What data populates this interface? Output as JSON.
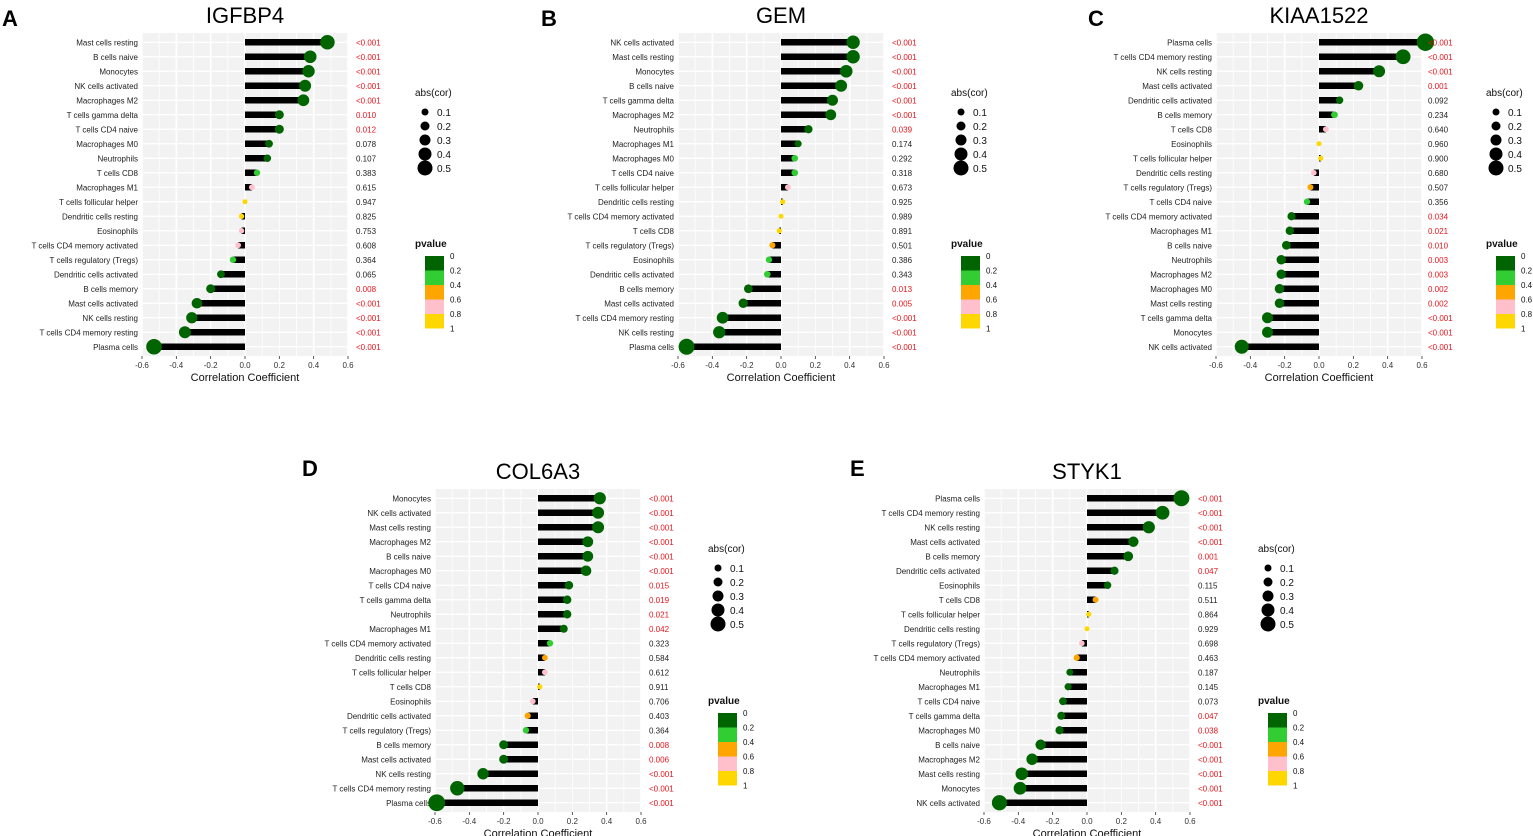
{
  "colors": {
    "panel_bg": "#f2f2f2",
    "stem": "#000000",
    "sig_text": "#e8141b",
    "normal_text": "#222222",
    "p_scale": [
      "#006400",
      "#32cd32",
      "#ffa500",
      "#ffc0cb",
      "#ffd700"
    ]
  },
  "legend": {
    "size_title": "abs(cor)",
    "size_labels": [
      "0.1",
      "0.2",
      "0.3",
      "0.4",
      "0.5"
    ],
    "color_title": "pvalue",
    "color_labels": [
      "0",
      "0.2",
      "0.4",
      "0.6",
      "0.8",
      "1"
    ]
  },
  "chart_data": [
    {
      "type": "lollipop",
      "panel": "A",
      "title": "IGFBP4",
      "xlabel": "Correlation Coefficient",
      "xlim": [
        -0.6,
        0.6
      ],
      "xticks": [
        "-0.6",
        "-0.4",
        "-0.2",
        "0.0",
        "0.2",
        "0.4",
        "0.6"
      ],
      "rows": [
        {
          "cell": "Mast cells resting",
          "cor": 0.48,
          "p": 0.0,
          "p_text": "<0.001"
        },
        {
          "cell": "B cells naive",
          "cor": 0.38,
          "p": 0.0,
          "p_text": "<0.001"
        },
        {
          "cell": "Monocytes",
          "cor": 0.37,
          "p": 0.0,
          "p_text": "<0.001"
        },
        {
          "cell": "NK cells activated",
          "cor": 0.35,
          "p": 0.0,
          "p_text": "<0.001"
        },
        {
          "cell": "Macrophages M2",
          "cor": 0.34,
          "p": 0.0,
          "p_text": "<0.001"
        },
        {
          "cell": "T cells gamma delta",
          "cor": 0.2,
          "p": 0.01,
          "p_text": "0.010"
        },
        {
          "cell": "T cells CD4 naive",
          "cor": 0.2,
          "p": 0.012,
          "p_text": "0.012"
        },
        {
          "cell": "Macrophages M0",
          "cor": 0.14,
          "p": 0.078,
          "p_text": "0.078"
        },
        {
          "cell": "Neutrophils",
          "cor": 0.13,
          "p": 0.107,
          "p_text": "0.107"
        },
        {
          "cell": "T cells CD8",
          "cor": 0.07,
          "p": 0.383,
          "p_text": "0.383"
        },
        {
          "cell": "Macrophages M1",
          "cor": 0.04,
          "p": 0.615,
          "p_text": "0.615"
        },
        {
          "cell": "T cells follicular helper",
          "cor": 0.0,
          "p": 0.947,
          "p_text": "0.947"
        },
        {
          "cell": "Dendritic cells resting",
          "cor": -0.02,
          "p": 0.825,
          "p_text": "0.825"
        },
        {
          "cell": "Eosinophils",
          "cor": -0.02,
          "p": 0.753,
          "p_text": "0.753"
        },
        {
          "cell": "T cells CD4 memory activated",
          "cor": -0.04,
          "p": 0.608,
          "p_text": "0.608"
        },
        {
          "cell": "T cells regulatory (Tregs)",
          "cor": -0.07,
          "p": 0.364,
          "p_text": "0.364"
        },
        {
          "cell": "Dendritic cells activated",
          "cor": -0.14,
          "p": 0.065,
          "p_text": "0.065"
        },
        {
          "cell": "B cells memory",
          "cor": -0.2,
          "p": 0.008,
          "p_text": "0.008"
        },
        {
          "cell": "Mast cells activated",
          "cor": -0.28,
          "p": 0.0,
          "p_text": "<0.001"
        },
        {
          "cell": "NK cells resting",
          "cor": -0.31,
          "p": 0.0,
          "p_text": "<0.001"
        },
        {
          "cell": "T cells CD4 memory resting",
          "cor": -0.35,
          "p": 0.0,
          "p_text": "<0.001"
        },
        {
          "cell": "Plasma cells",
          "cor": -0.53,
          "p": 0.0,
          "p_text": "<0.001"
        }
      ]
    },
    {
      "type": "lollipop",
      "panel": "B",
      "title": "GEM",
      "xlabel": "Correlation Coefficient",
      "xlim": [
        -0.6,
        0.6
      ],
      "xticks": [
        "-0.6",
        "-0.4",
        "-0.2",
        "0.0",
        "0.2",
        "0.4",
        "0.6"
      ],
      "rows": [
        {
          "cell": "NK cells activated",
          "cor": 0.42,
          "p": 0.0,
          "p_text": "<0.001"
        },
        {
          "cell": "Mast cells resting",
          "cor": 0.42,
          "p": 0.0,
          "p_text": "<0.001"
        },
        {
          "cell": "Monocytes",
          "cor": 0.38,
          "p": 0.0,
          "p_text": "<0.001"
        },
        {
          "cell": "B cells naive",
          "cor": 0.35,
          "p": 0.0,
          "p_text": "<0.001"
        },
        {
          "cell": "T cells gamma delta",
          "cor": 0.3,
          "p": 0.0,
          "p_text": "<0.001"
        },
        {
          "cell": "Macrophages M2",
          "cor": 0.29,
          "p": 0.0,
          "p_text": "<0.001"
        },
        {
          "cell": "Neutrophils",
          "cor": 0.16,
          "p": 0.039,
          "p_text": "0.039"
        },
        {
          "cell": "Macrophages M1",
          "cor": 0.1,
          "p": 0.174,
          "p_text": "0.174"
        },
        {
          "cell": "Macrophages M0",
          "cor": 0.08,
          "p": 0.292,
          "p_text": "0.292"
        },
        {
          "cell": "T cells CD4 naive",
          "cor": 0.08,
          "p": 0.318,
          "p_text": "0.318"
        },
        {
          "cell": "T cells follicular helper",
          "cor": 0.04,
          "p": 0.673,
          "p_text": "0.673"
        },
        {
          "cell": "Dendritic cells resting",
          "cor": 0.01,
          "p": 0.925,
          "p_text": "0.925"
        },
        {
          "cell": "T cells CD4 memory activated",
          "cor": 0.0,
          "p": 0.989,
          "p_text": "0.989"
        },
        {
          "cell": "T cells CD8",
          "cor": -0.01,
          "p": 0.891,
          "p_text": "0.891"
        },
        {
          "cell": "T cells regulatory (Tregs)",
          "cor": -0.05,
          "p": 0.501,
          "p_text": "0.501"
        },
        {
          "cell": "Eosinophils",
          "cor": -0.07,
          "p": 0.386,
          "p_text": "0.386"
        },
        {
          "cell": "Dendritic cells activated",
          "cor": -0.08,
          "p": 0.343,
          "p_text": "0.343"
        },
        {
          "cell": "B cells memory",
          "cor": -0.19,
          "p": 0.013,
          "p_text": "0.013"
        },
        {
          "cell": "Mast cells activated",
          "cor": -0.22,
          "p": 0.005,
          "p_text": "0.005"
        },
        {
          "cell": "T cells CD4 memory resting",
          "cor": -0.34,
          "p": 0.0,
          "p_text": "<0.001"
        },
        {
          "cell": "NK cells resting",
          "cor": -0.36,
          "p": 0.0,
          "p_text": "<0.001"
        },
        {
          "cell": "Plasma cells",
          "cor": -0.55,
          "p": 0.0,
          "p_text": "<0.001"
        }
      ]
    },
    {
      "type": "lollipop",
      "panel": "C",
      "title": "KIAA1522",
      "xlabel": "Correlation Coefficient",
      "xlim": [
        -0.6,
        0.6
      ],
      "xticks": [
        "-0.6",
        "-0.4",
        "-0.2",
        "0.0",
        "0.2",
        "0.4",
        "0.6"
      ],
      "rows": [
        {
          "cell": "Plasma cells",
          "cor": 0.62,
          "p": 0.0,
          "p_text": "<0.001"
        },
        {
          "cell": "T cells CD4 memory resting",
          "cor": 0.49,
          "p": 0.0,
          "p_text": "<0.001"
        },
        {
          "cell": "NK cells resting",
          "cor": 0.35,
          "p": 0.0,
          "p_text": "<0.001"
        },
        {
          "cell": "Mast cells activated",
          "cor": 0.23,
          "p": 0.001,
          "p_text": "0.001"
        },
        {
          "cell": "Dendritic cells activated",
          "cor": 0.12,
          "p": 0.092,
          "p_text": "0.092"
        },
        {
          "cell": "B cells memory",
          "cor": 0.09,
          "p": 0.234,
          "p_text": "0.234"
        },
        {
          "cell": "T cells CD8",
          "cor": 0.04,
          "p": 0.64,
          "p_text": "0.640"
        },
        {
          "cell": "Eosinophils",
          "cor": 0.0,
          "p": 0.96,
          "p_text": "0.960"
        },
        {
          "cell": "T cells follicular helper",
          "cor": 0.01,
          "p": 0.9,
          "p_text": "0.900"
        },
        {
          "cell": "Dendritic cells resting",
          "cor": -0.03,
          "p": 0.68,
          "p_text": "0.680"
        },
        {
          "cell": "T cells regulatory (Tregs)",
          "cor": -0.05,
          "p": 0.507,
          "p_text": "0.507"
        },
        {
          "cell": "T cells CD4 naive",
          "cor": -0.07,
          "p": 0.356,
          "p_text": "0.356"
        },
        {
          "cell": "T cells CD4 memory activated",
          "cor": -0.16,
          "p": 0.034,
          "p_text": "0.034"
        },
        {
          "cell": "Macrophages M1",
          "cor": -0.17,
          "p": 0.021,
          "p_text": "0.021"
        },
        {
          "cell": "B cells naive",
          "cor": -0.19,
          "p": 0.01,
          "p_text": "0.010"
        },
        {
          "cell": "Neutrophils",
          "cor": -0.22,
          "p": 0.003,
          "p_text": "0.003"
        },
        {
          "cell": "Macrophages M2",
          "cor": -0.22,
          "p": 0.003,
          "p_text": "0.003"
        },
        {
          "cell": "Macrophages M0",
          "cor": -0.23,
          "p": 0.002,
          "p_text": "0.002"
        },
        {
          "cell": "Mast cells resting",
          "cor": -0.23,
          "p": 0.002,
          "p_text": "0.002"
        },
        {
          "cell": "T cells gamma delta",
          "cor": -0.3,
          "p": 0.0,
          "p_text": "<0.001"
        },
        {
          "cell": "Monocytes",
          "cor": -0.3,
          "p": 0.0,
          "p_text": "<0.001"
        },
        {
          "cell": "NK cells activated",
          "cor": -0.45,
          "p": 0.0,
          "p_text": "<0.001"
        }
      ]
    },
    {
      "type": "lollipop",
      "panel": "D",
      "title": "COL6A3",
      "xlabel": "Correlation Coefficient",
      "xlim": [
        -0.6,
        0.6
      ],
      "xticks": [
        "-0.6",
        "-0.4",
        "-0.2",
        "0.0",
        "0.2",
        "0.4",
        "0.6"
      ],
      "rows": [
        {
          "cell": "Monocytes",
          "cor": 0.36,
          "p": 0.0,
          "p_text": "<0.001"
        },
        {
          "cell": "NK cells activated",
          "cor": 0.35,
          "p": 0.0,
          "p_text": "<0.001"
        },
        {
          "cell": "Mast cells resting",
          "cor": 0.35,
          "p": 0.0,
          "p_text": "<0.001"
        },
        {
          "cell": "Macrophages M2",
          "cor": 0.29,
          "p": 0.0,
          "p_text": "<0.001"
        },
        {
          "cell": "B cells naive",
          "cor": 0.29,
          "p": 0.0,
          "p_text": "<0.001"
        },
        {
          "cell": "Macrophages M0",
          "cor": 0.28,
          "p": 0.0,
          "p_text": "<0.001"
        },
        {
          "cell": "T cells CD4 naive",
          "cor": 0.18,
          "p": 0.015,
          "p_text": "0.015"
        },
        {
          "cell": "T cells gamma delta",
          "cor": 0.17,
          "p": 0.019,
          "p_text": "0.019"
        },
        {
          "cell": "Neutrophils",
          "cor": 0.17,
          "p": 0.021,
          "p_text": "0.021"
        },
        {
          "cell": "Macrophages M1",
          "cor": 0.15,
          "p": 0.042,
          "p_text": "0.042"
        },
        {
          "cell": "T cells CD4 memory activated",
          "cor": 0.07,
          "p": 0.323,
          "p_text": "0.323"
        },
        {
          "cell": "Dendritic cells resting",
          "cor": 0.04,
          "p": 0.584,
          "p_text": "0.584"
        },
        {
          "cell": "T cells follicular helper",
          "cor": 0.04,
          "p": 0.612,
          "p_text": "0.612"
        },
        {
          "cell": "T cells CD8",
          "cor": 0.01,
          "p": 0.911,
          "p_text": "0.911"
        },
        {
          "cell": "Eosinophils",
          "cor": -0.03,
          "p": 0.706,
          "p_text": "0.706"
        },
        {
          "cell": "Dendritic cells activated",
          "cor": -0.06,
          "p": 0.403,
          "p_text": "0.403"
        },
        {
          "cell": "T cells regulatory (Tregs)",
          "cor": -0.07,
          "p": 0.364,
          "p_text": "0.364"
        },
        {
          "cell": "B cells memory",
          "cor": -0.2,
          "p": 0.008,
          "p_text": "0.008"
        },
        {
          "cell": "Mast cells activated",
          "cor": -0.2,
          "p": 0.006,
          "p_text": "0.006"
        },
        {
          "cell": "NK cells resting",
          "cor": -0.32,
          "p": 0.0,
          "p_text": "<0.001"
        },
        {
          "cell": "T cells CD4 memory resting",
          "cor": -0.47,
          "p": 0.0,
          "p_text": "<0.001"
        },
        {
          "cell": "Plasma cells",
          "cor": -0.59,
          "p": 0.0,
          "p_text": "<0.001"
        }
      ]
    },
    {
      "type": "lollipop",
      "panel": "E",
      "title": "STYK1",
      "xlabel": "Correlation Coefficient",
      "xlim": [
        -0.6,
        0.6
      ],
      "xticks": [
        "-0.6",
        "-0.4",
        "-0.2",
        "0.0",
        "0.2",
        "0.4",
        "0.6"
      ],
      "rows": [
        {
          "cell": "Plasma cells",
          "cor": 0.55,
          "p": 0.0,
          "p_text": "<0.001"
        },
        {
          "cell": "T cells CD4 memory resting",
          "cor": 0.44,
          "p": 0.0,
          "p_text": "<0.001"
        },
        {
          "cell": "NK cells resting",
          "cor": 0.36,
          "p": 0.0,
          "p_text": "<0.001"
        },
        {
          "cell": "Mast cells activated",
          "cor": 0.27,
          "p": 0.0,
          "p_text": "<0.001"
        },
        {
          "cell": "B cells memory",
          "cor": 0.24,
          "p": 0.001,
          "p_text": "0.001"
        },
        {
          "cell": "Dendritic cells activated",
          "cor": 0.16,
          "p": 0.047,
          "p_text": "0.047"
        },
        {
          "cell": "Eosinophils",
          "cor": 0.12,
          "p": 0.115,
          "p_text": "0.115"
        },
        {
          "cell": "T cells CD8",
          "cor": 0.05,
          "p": 0.511,
          "p_text": "0.511"
        },
        {
          "cell": "T cells follicular helper",
          "cor": 0.01,
          "p": 0.864,
          "p_text": "0.864"
        },
        {
          "cell": "Dendritic cells resting",
          "cor": 0.0,
          "p": 0.929,
          "p_text": "0.929"
        },
        {
          "cell": "T cells regulatory (Tregs)",
          "cor": -0.03,
          "p": 0.698,
          "p_text": "0.698"
        },
        {
          "cell": "T cells CD4 memory activated",
          "cor": -0.06,
          "p": 0.463,
          "p_text": "0.463"
        },
        {
          "cell": "Neutrophils",
          "cor": -0.1,
          "p": 0.187,
          "p_text": "0.187"
        },
        {
          "cell": "Macrophages M1",
          "cor": -0.11,
          "p": 0.145,
          "p_text": "0.145"
        },
        {
          "cell": "T cells CD4 naive",
          "cor": -0.14,
          "p": 0.073,
          "p_text": "0.073"
        },
        {
          "cell": "T cells gamma delta",
          "cor": -0.15,
          "p": 0.047,
          "p_text": "0.047"
        },
        {
          "cell": "Macrophages M0",
          "cor": -0.16,
          "p": 0.038,
          "p_text": "0.038"
        },
        {
          "cell": "B cells naive",
          "cor": -0.27,
          "p": 0.0,
          "p_text": "<0.001"
        },
        {
          "cell": "Macrophages M2",
          "cor": -0.32,
          "p": 0.0,
          "p_text": "<0.001"
        },
        {
          "cell": "Mast cells resting",
          "cor": -0.38,
          "p": 0.0,
          "p_text": "<0.001"
        },
        {
          "cell": "Monocytes",
          "cor": -0.39,
          "p": 0.0,
          "p_text": "<0.001"
        },
        {
          "cell": "NK cells activated",
          "cor": -0.51,
          "p": 0.0,
          "p_text": "<0.001"
        }
      ]
    }
  ]
}
